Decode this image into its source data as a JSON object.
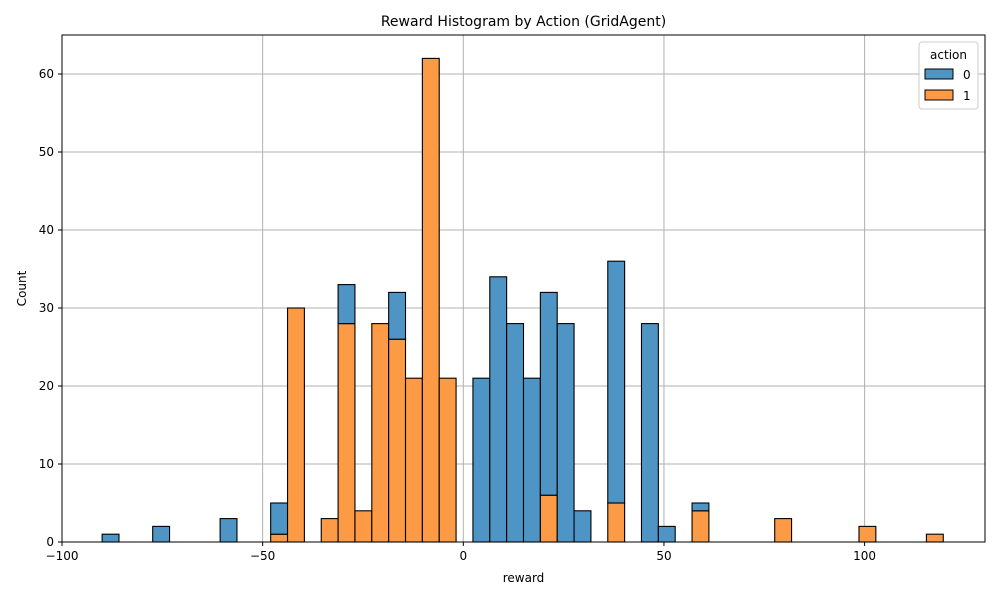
{
  "chart_data": {
    "type": "bar",
    "stacked": true,
    "title": "Reward Histogram by Action (GridAgent)",
    "xlabel": "reward",
    "ylabel": "Count",
    "xlim": [
      -100,
      130
    ],
    "ylim": [
      0,
      65
    ],
    "x_ticks": [
      -100,
      -50,
      0,
      50,
      100
    ],
    "y_ticks": [
      0,
      10,
      20,
      30,
      40,
      50,
      60
    ],
    "grid": true,
    "legend": {
      "title": "action",
      "placement": "top-right"
    },
    "bin_width": 4.2,
    "bin_starts": [
      -90,
      -77.4,
      -60.6,
      -48,
      -43.8,
      -35.4,
      -31.2,
      -27,
      -22.8,
      -18.6,
      -14.4,
      -10.2,
      -6,
      2.4,
      6.6,
      10.8,
      15,
      19.2,
      23.4,
      27.6,
      36,
      44.4,
      48.6,
      57,
      77.6,
      98.6,
      115.4
    ],
    "series": [
      {
        "name": "0",
        "color": "#4e95c6",
        "values": [
          1,
          2,
          3,
          4,
          0,
          0,
          5,
          0,
          0,
          6,
          0,
          0,
          0,
          21,
          34,
          28,
          21,
          26,
          28,
          4,
          31,
          28,
          2,
          1,
          0,
          0,
          0
        ]
      },
      {
        "name": "1",
        "color": "#fd9a45",
        "values": [
          0,
          0,
          0,
          1,
          30,
          3,
          28,
          4,
          28,
          26,
          21,
          62,
          21,
          0,
          0,
          0,
          0,
          6,
          0,
          0,
          5,
          0,
          0,
          4,
          3,
          2,
          1
        ]
      }
    ]
  }
}
